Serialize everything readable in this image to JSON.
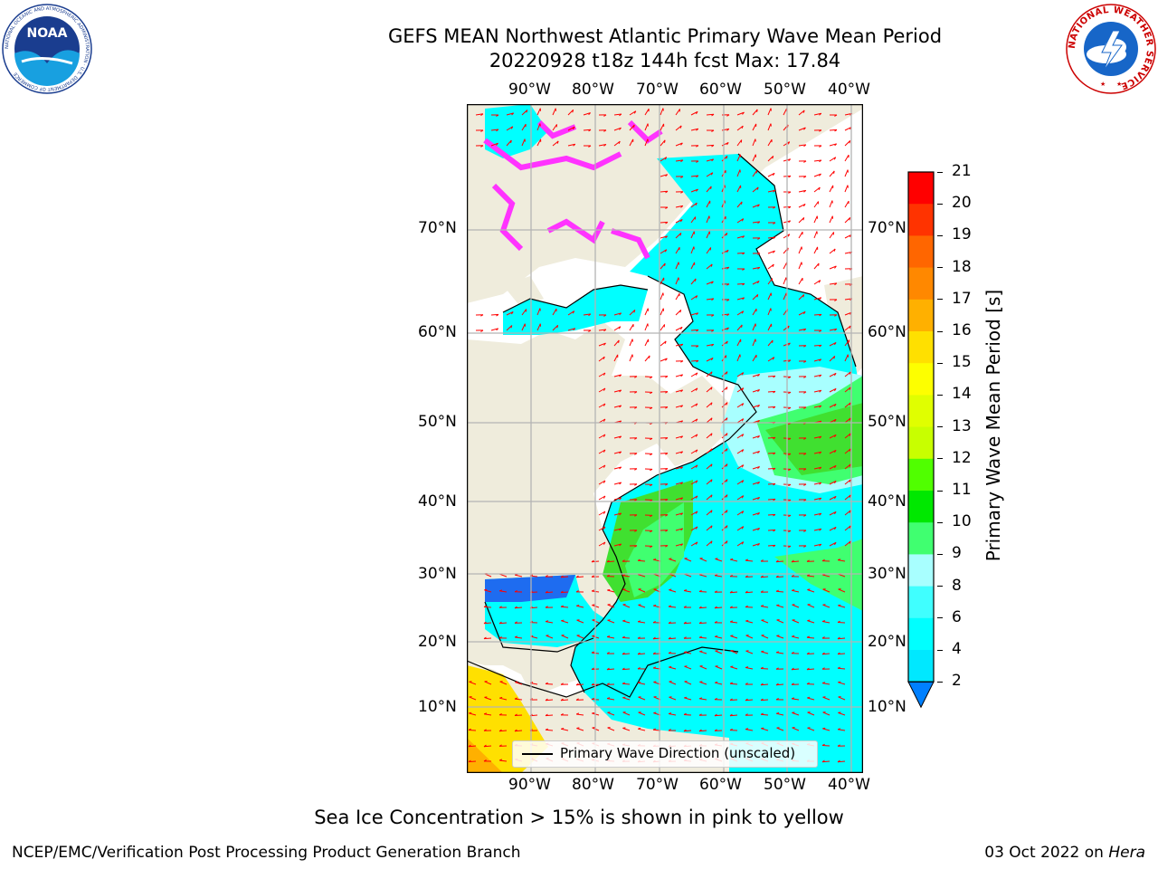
{
  "title": {
    "line1": "GEFS MEAN Northwest Atlantic Primary Wave Mean Period",
    "line2": "20220928 t18z 144h fcst   Max: 17.84"
  },
  "map": {
    "lon_labels": [
      "90°W",
      "80°W",
      "70°W",
      "60°W",
      "50°W",
      "40°W"
    ],
    "lat_labels": [
      "70°N",
      "60°N",
      "50°N",
      "40°N",
      "30°N",
      "20°N",
      "10°N"
    ],
    "legend_label": "Primary Wave Direction (unscaled)",
    "land_color": "#efecdc",
    "grid_color": "#b4b4b4",
    "vector_color": "#ff0000"
  },
  "colorbar": {
    "label": "Primary Wave Mean Period [s]",
    "ticks": [
      "21",
      "20",
      "19",
      "18",
      "17",
      "16",
      "15",
      "14",
      "13",
      "12",
      "11",
      "10",
      "9",
      "8",
      "6",
      "4",
      "2"
    ],
    "colors": [
      "#ff0000",
      "#ff3300",
      "#ff6600",
      "#ff8800",
      "#ffb000",
      "#ffe000",
      "#fdff00",
      "#e0ff00",
      "#c8ff00",
      "#50ff00",
      "#00e800",
      "#40ff70",
      "#a8ffff",
      "#40ffff",
      "#00ffff",
      "#00e8ff",
      "#0080ff",
      "#0000ff"
    ]
  },
  "logos": {
    "noaa_text": "NOAA",
    "noaa_ring": "NATIONAL OCEANIC AND ATMOSPHERIC ADMINISTRATION · U.S. DEPARTMENT OF COMMERCE",
    "nws_ring": "NATIONAL WEATHER SERVICE"
  },
  "note": "Sea Ice Concentration > 15% is shown in pink to yellow",
  "footer": {
    "left": "NCEP/EMC/Verification Post Processing Product Generation Branch",
    "date": "03 Oct 2022 on ",
    "system": "Hera"
  }
}
